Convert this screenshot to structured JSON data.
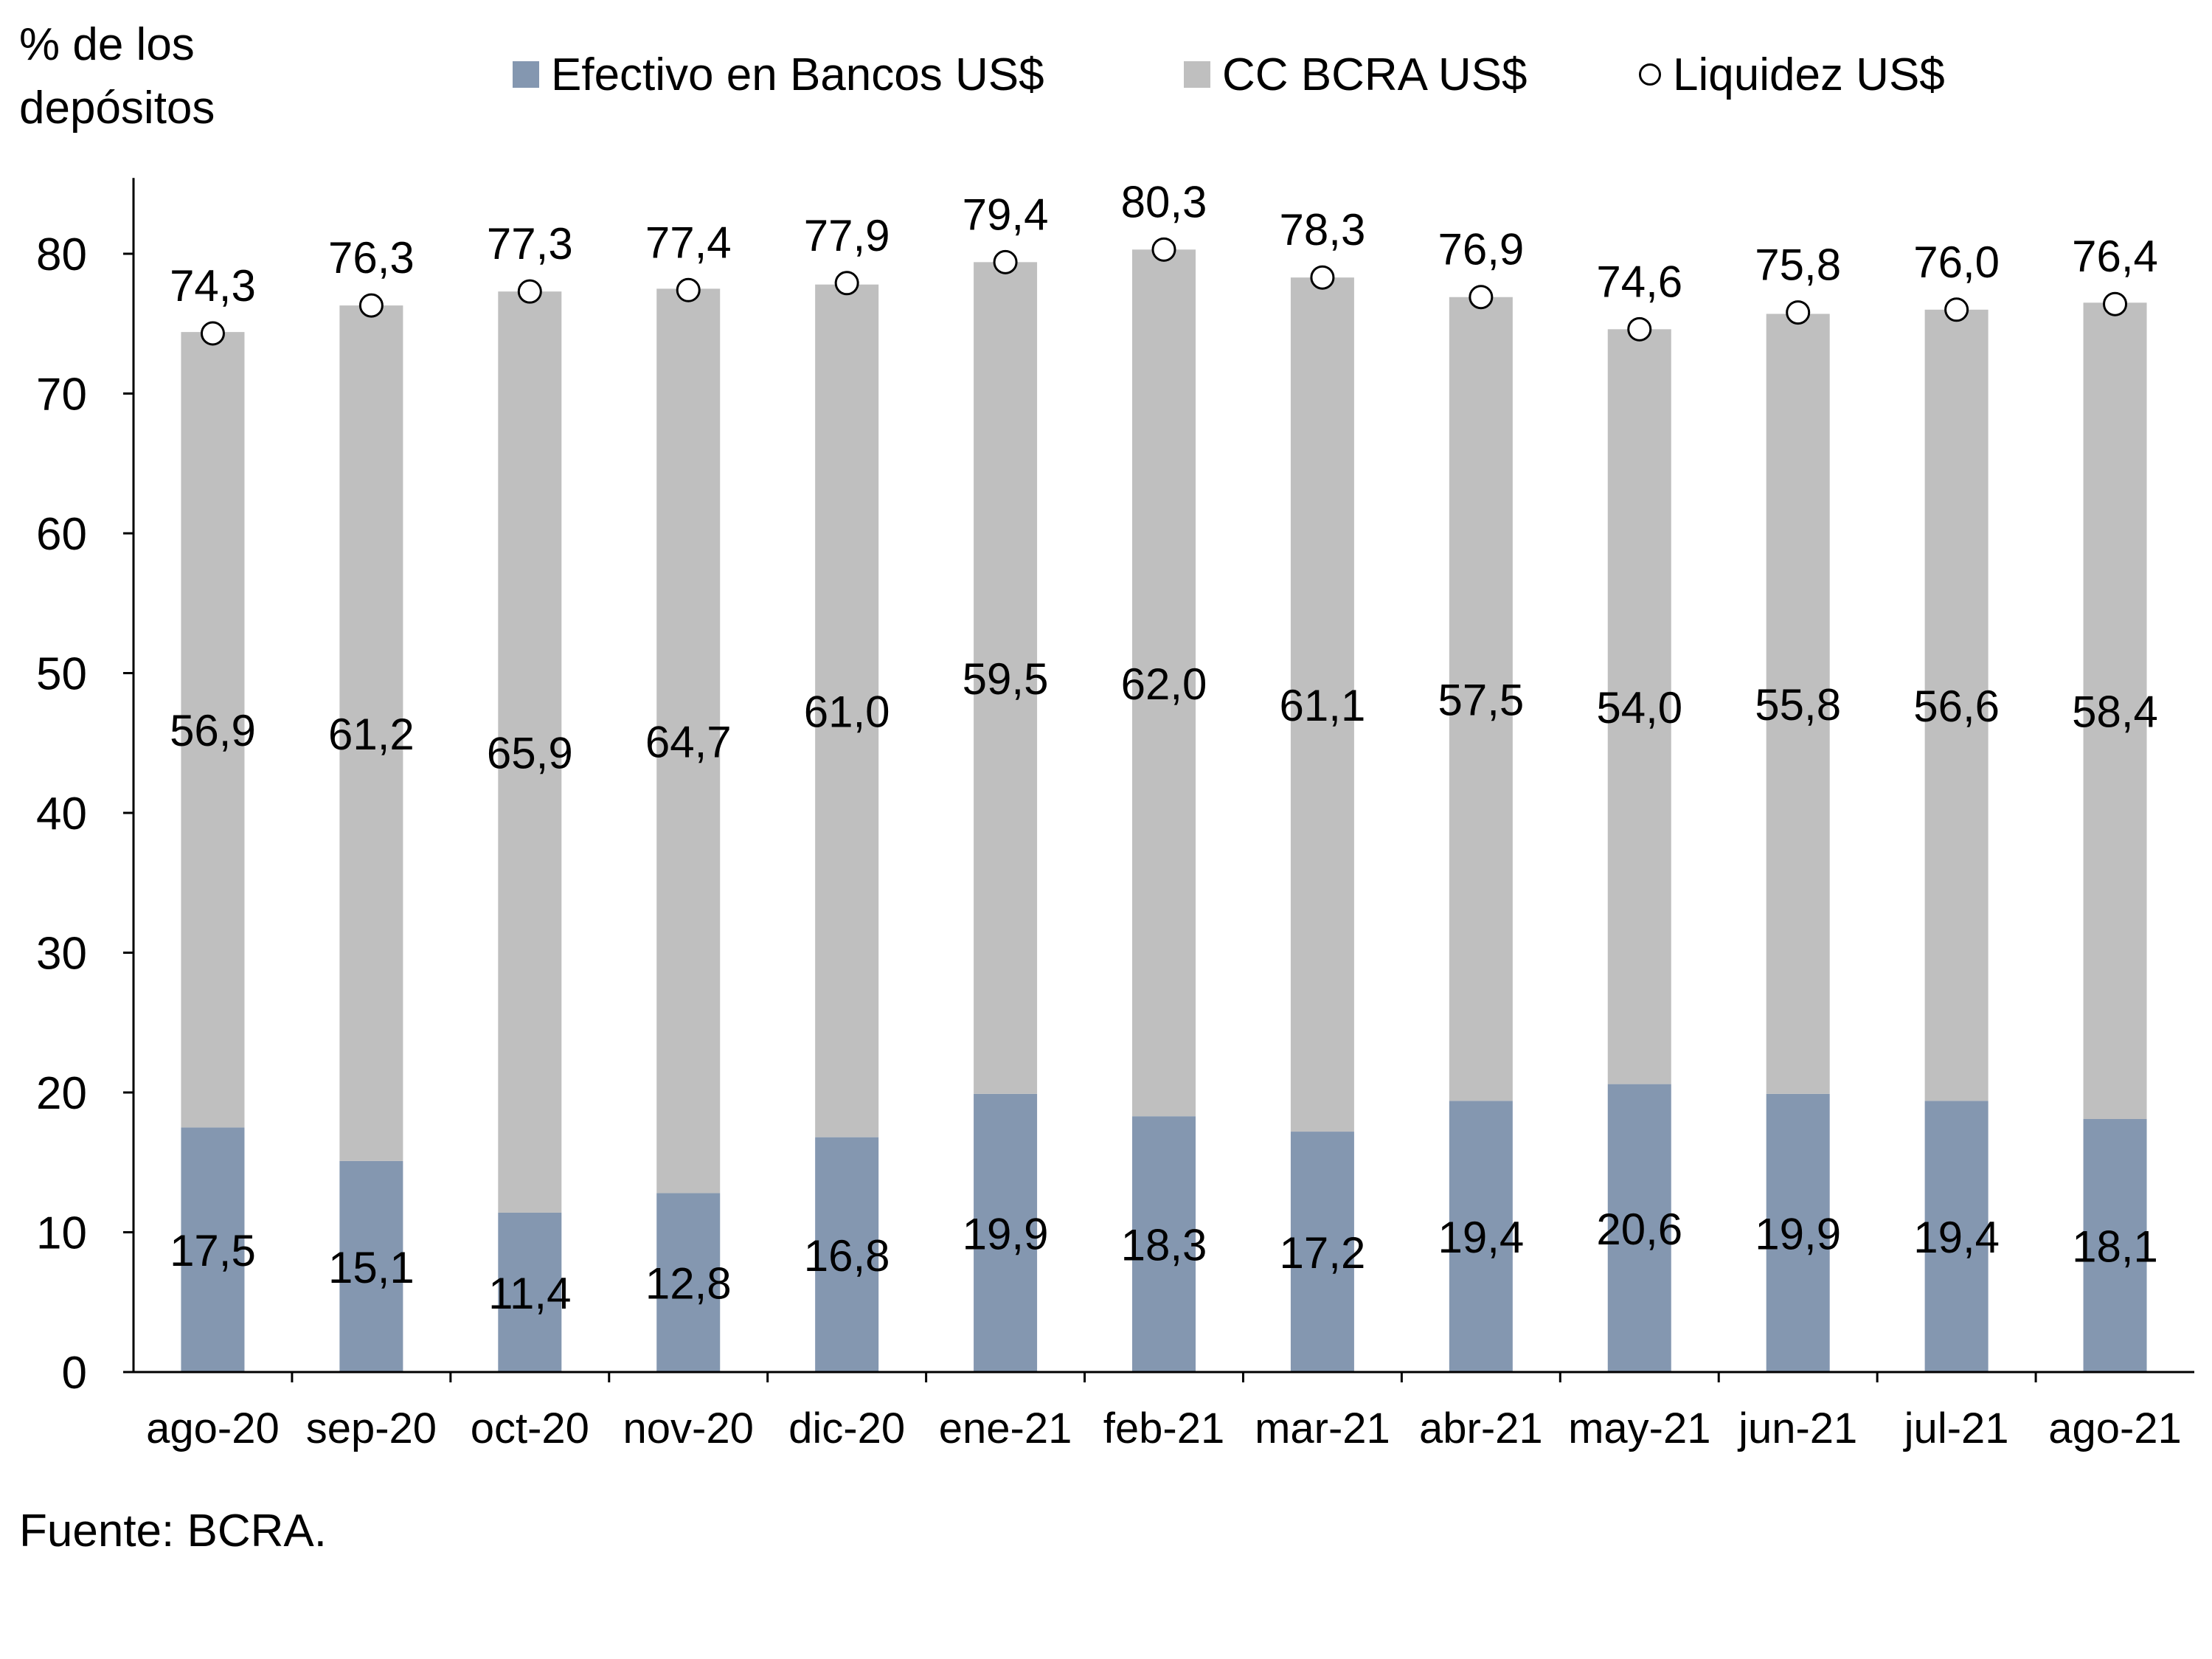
{
  "chart_data": {
    "type": "bar",
    "stacked": true,
    "title": "",
    "ylabel": "% de los\ndepósitos",
    "xlabel": "",
    "ylim": [
      0,
      85
    ],
    "yticks": [
      0,
      10,
      20,
      30,
      40,
      50,
      60,
      70,
      80
    ],
    "grid": false,
    "legend_position": "top",
    "categories": [
      "ago-20",
      "sep-20",
      "oct-20",
      "nov-20",
      "dic-20",
      "ene-21",
      "feb-21",
      "mar-21",
      "abr-21",
      "may-21",
      "jun-21",
      "jul-21",
      "ago-21"
    ],
    "series": [
      {
        "name": "Efectivo en Bancos US$",
        "kind": "bar",
        "color": "#8497b0",
        "values": [
          17.5,
          15.1,
          11.4,
          12.8,
          16.8,
          19.9,
          18.3,
          17.2,
          19.4,
          20.6,
          19.9,
          19.4,
          18.1
        ],
        "labels": [
          "17,5",
          "15,1",
          "11,4",
          "12,8",
          "16,8",
          "19,9",
          "18,3",
          "17,2",
          "19,4",
          "20,6",
          "19,9",
          "19,4",
          "18,1"
        ]
      },
      {
        "name": "CC BCRA US$",
        "kind": "bar",
        "color": "#bfbfbf",
        "values": [
          56.9,
          61.2,
          65.9,
          64.7,
          61.0,
          59.5,
          62.0,
          61.1,
          57.5,
          54.0,
          55.8,
          56.6,
          58.4
        ],
        "labels": [
          "56,9",
          "61,2",
          "65,9",
          "64,7",
          "61,0",
          "59,5",
          "62,0",
          "61,1",
          "57,5",
          "54,0",
          "55,8",
          "56,6",
          "58,4"
        ]
      },
      {
        "name": "Liquidez US$",
        "kind": "point",
        "color": "#ffffff",
        "values": [
          74.3,
          76.3,
          77.3,
          77.4,
          77.9,
          79.4,
          80.3,
          78.3,
          76.9,
          74.6,
          75.8,
          76.0,
          76.4
        ],
        "labels": [
          "74,3",
          "76,3",
          "77,3",
          "77,4",
          "77,9",
          "79,4",
          "80,3",
          "78,3",
          "76,9",
          "74,6",
          "75,8",
          "76,0",
          "76,4"
        ]
      }
    ]
  },
  "source": "Fuente: BCRA."
}
